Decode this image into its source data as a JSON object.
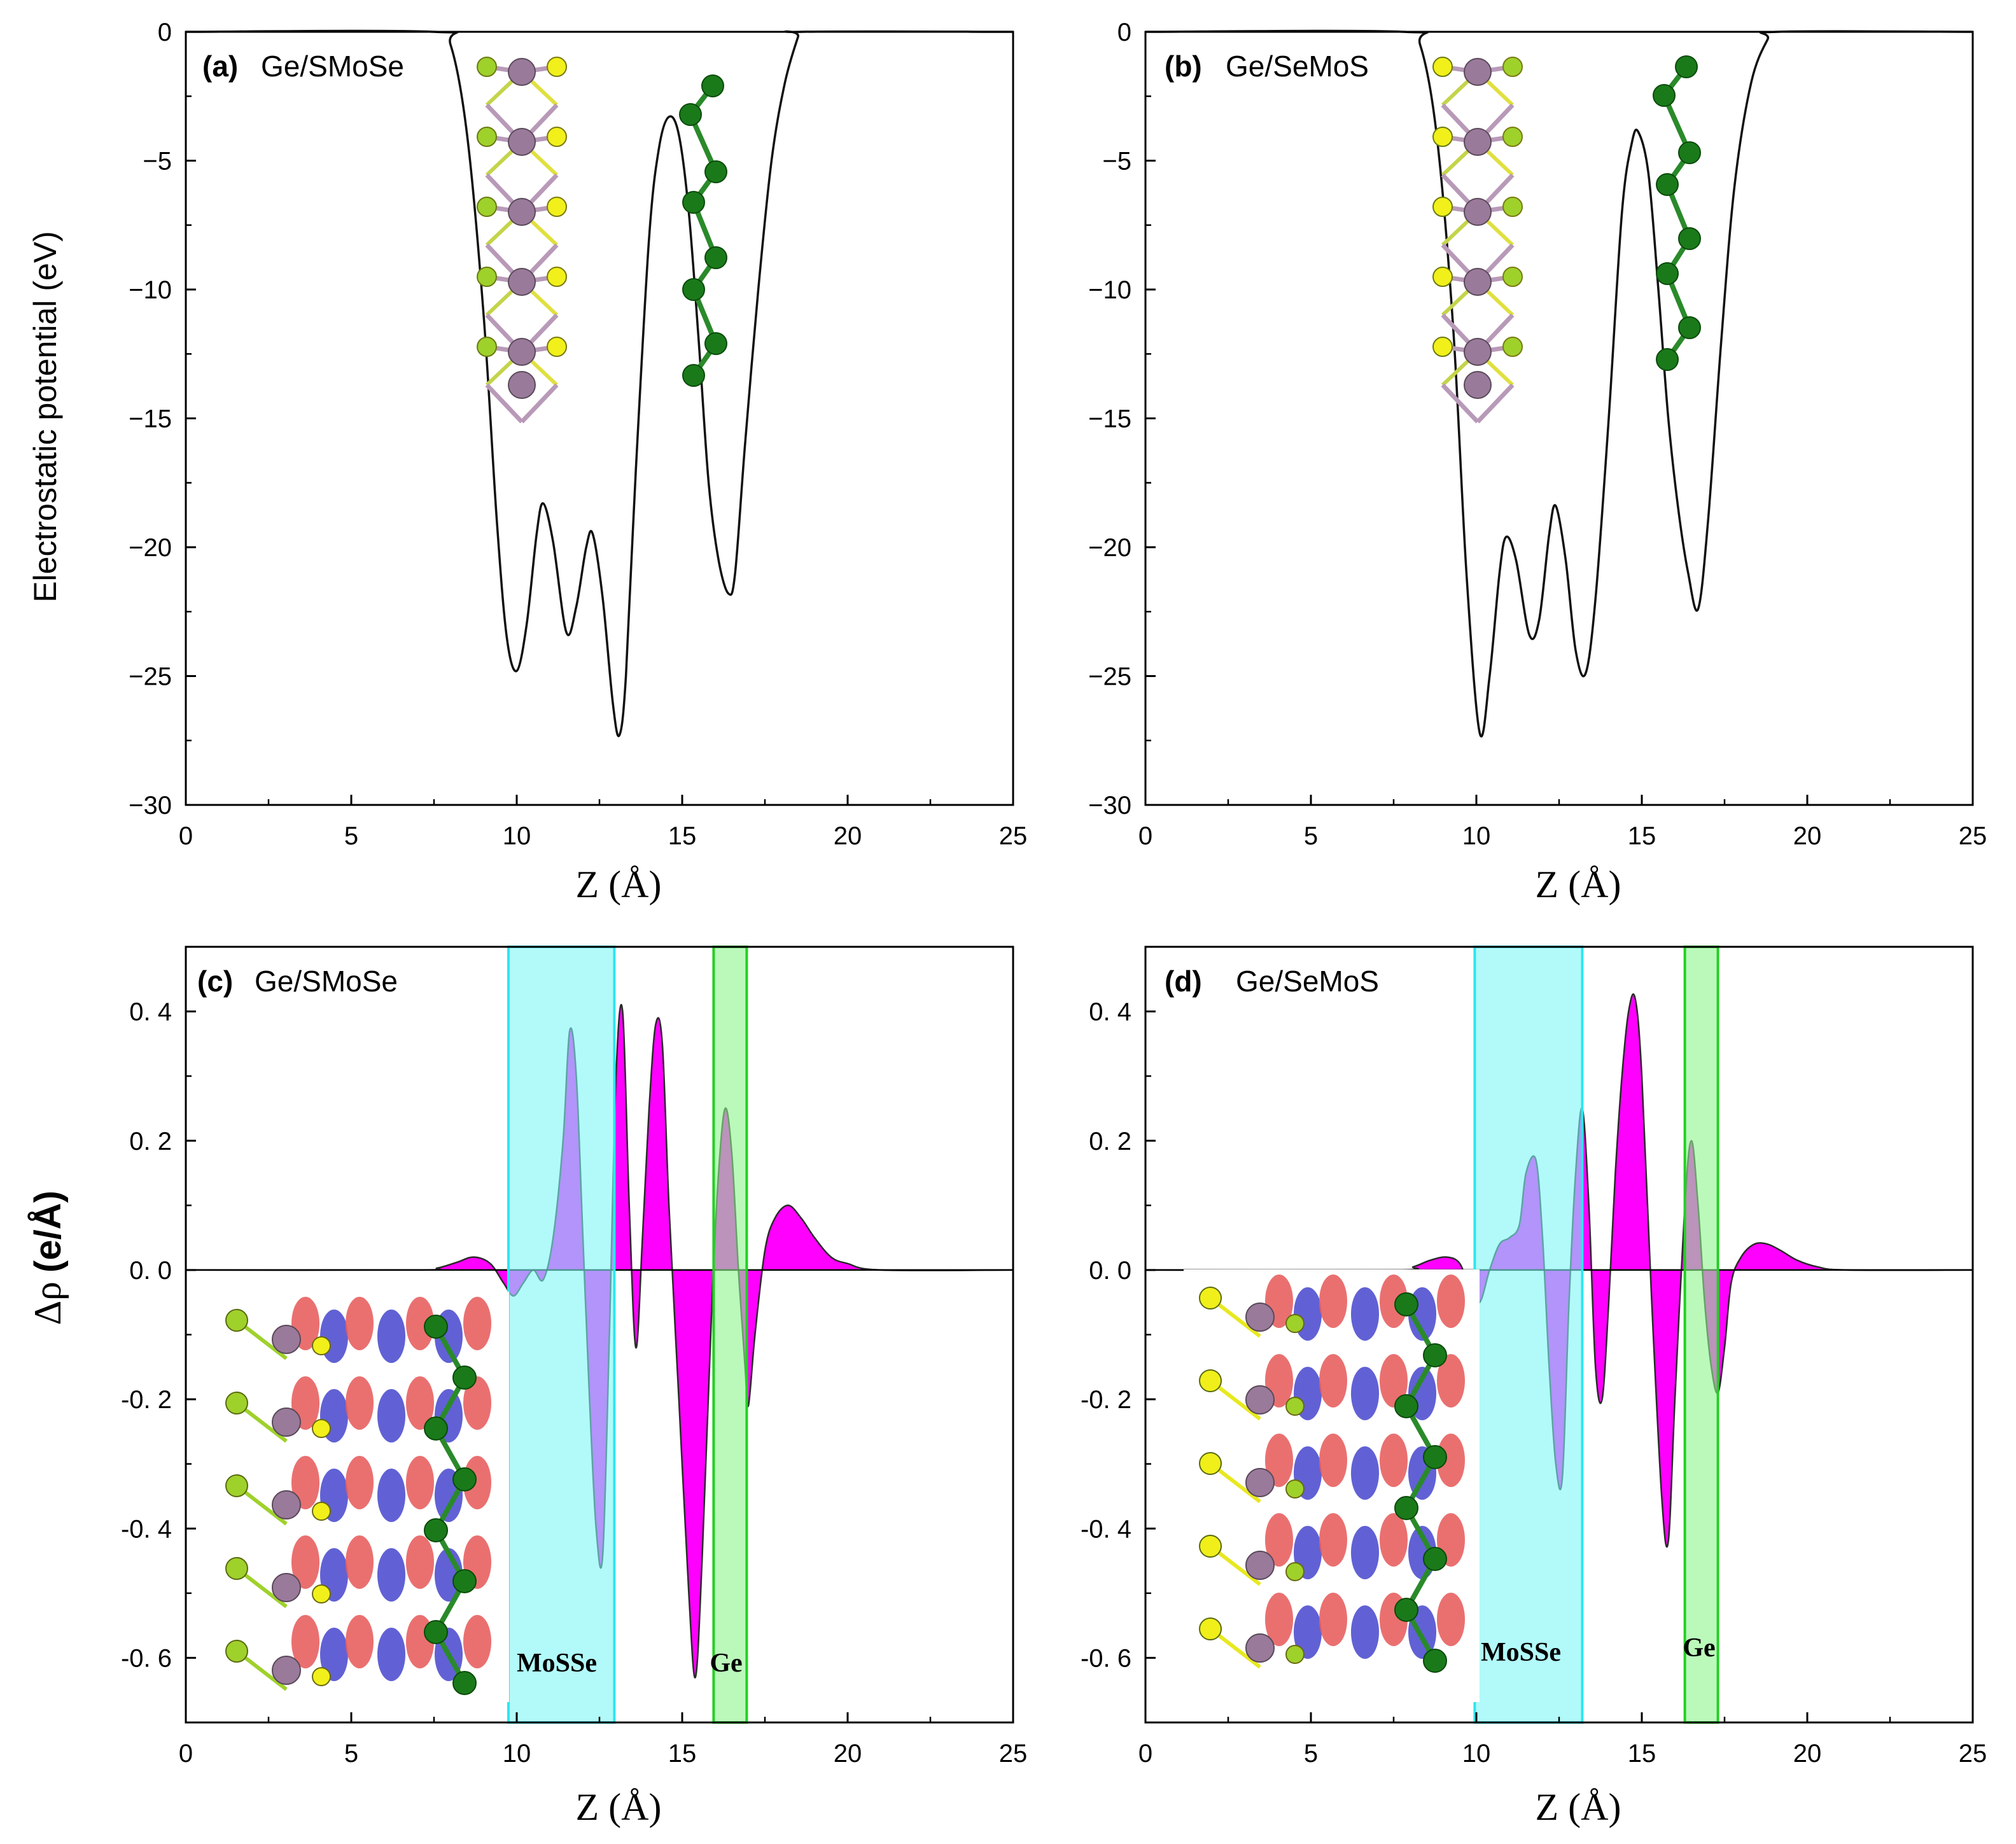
{
  "chart_data": [
    {
      "type": "line",
      "panel_letter": "(a)",
      "panel_name": "Ge/SMoSe",
      "xlabel": "Z (Å)",
      "ylabel": "Electrostatic potential (eV)",
      "xlim": [
        0,
        25
      ],
      "ylim": [
        -30,
        0
      ],
      "xticks": [
        "0",
        "5",
        "10",
        "15",
        "20",
        "25"
      ],
      "yticks": [
        "0",
        "−5",
        "−10",
        "−15",
        "−20",
        "−25",
        "−30"
      ],
      "inset": "atomic-structure-ge-smose",
      "series": [
        {
          "name": "potential",
          "x": [
            0,
            7.5,
            8.0,
            8.5,
            9.0,
            9.4,
            9.7,
            10.0,
            10.3,
            10.6,
            10.8,
            11.1,
            11.5,
            11.8,
            12.1,
            12.3,
            12.6,
            12.9,
            13.1,
            13.3,
            13.6,
            14.0,
            14.3,
            14.6,
            14.9,
            15.2,
            15.5,
            15.8,
            16.1,
            16.4,
            16.6,
            16.9,
            17.3,
            17.7,
            18.1,
            18.5,
            18.6,
            25
          ],
          "y": [
            0,
            0,
            -0.5,
            -4.0,
            -11.0,
            -19.0,
            -23.5,
            -24.8,
            -23.0,
            -19.5,
            -18.3,
            -19.8,
            -23.3,
            -22.3,
            -20.0,
            -19.5,
            -22.0,
            -26.0,
            -27.3,
            -25.0,
            -17.0,
            -8.0,
            -4.5,
            -3.3,
            -4.0,
            -7.0,
            -12.0,
            -17.5,
            -20.5,
            -21.8,
            -21.0,
            -16.0,
            -10.0,
            -5.0,
            -2.0,
            -0.2,
            0,
            0
          ]
        }
      ]
    },
    {
      "type": "line",
      "panel_letter": "(b)",
      "panel_name": "Ge/SeMoS",
      "xlabel": "Z (Å)",
      "ylabel": "",
      "xlim": [
        0,
        25
      ],
      "ylim": [
        -30,
        0
      ],
      "xticks": [
        "0",
        "5",
        "10",
        "15",
        "20",
        "25"
      ],
      "yticks": [
        "0",
        "−5",
        "−10",
        "−15",
        "−20",
        "−25",
        "−30"
      ],
      "inset": "atomic-structure-ge-semos",
      "series": [
        {
          "name": "potential",
          "x": [
            0,
            7.8,
            8.3,
            8.8,
            9.3,
            9.7,
            10.1,
            10.4,
            10.7,
            10.9,
            11.2,
            11.6,
            11.9,
            12.2,
            12.4,
            12.7,
            13.0,
            13.3,
            13.6,
            14.0,
            14.4,
            14.7,
            14.9,
            15.2,
            15.5,
            15.8,
            16.1,
            16.4,
            16.7,
            17.0,
            17.4,
            17.8,
            18.3,
            18.8,
            19.1,
            25
          ],
          "y": [
            0,
            0,
            -0.5,
            -4.0,
            -11.5,
            -21.0,
            -27.2,
            -25.0,
            -21.0,
            -19.6,
            -20.5,
            -23.4,
            -22.8,
            -19.5,
            -18.4,
            -20.5,
            -24.0,
            -24.9,
            -22.0,
            -15.0,
            -7.0,
            -4.3,
            -3.9,
            -5.5,
            -10.0,
            -15.0,
            -18.5,
            -21.0,
            -22.4,
            -19.0,
            -12.0,
            -6.0,
            -2.0,
            -0.3,
            0,
            0
          ]
        }
      ]
    },
    {
      "type": "area",
      "panel_letter": "(c)",
      "panel_name": "Ge/SMoSe",
      "xlabel": "Z (Å)",
      "ylabel_symbol": "Δρ",
      "ylabel_unit": "(e/Å)",
      "xlim": [
        0,
        25
      ],
      "ylim": [
        -0.7,
        0.5
      ],
      "xticks": [
        "0",
        "5",
        "10",
        "15",
        "20",
        "25"
      ],
      "yticks": [
        "0. 4",
        "0. 2",
        "0. 0",
        "-0. 2",
        "-0. 4",
        "-0. 6"
      ],
      "regions": [
        {
          "label": "MoSSe",
          "x0": 9.75,
          "x1": 12.95,
          "color": "#7ff7f7"
        },
        {
          "label": "Ge",
          "x0": 15.95,
          "x1": 16.95,
          "color": "#8ef58e"
        }
      ],
      "inset": "charge-density-difference-ge-smose",
      "series": [
        {
          "name": "delta_rho",
          "x": [
            0,
            7.0,
            7.6,
            8.2,
            8.7,
            9.2,
            9.6,
            9.9,
            10.2,
            10.5,
            10.8,
            11.1,
            11.4,
            11.6,
            11.8,
            12.0,
            12.2,
            12.4,
            12.6,
            12.8,
            13.0,
            13.2,
            13.4,
            13.6,
            13.8,
            14.0,
            14.2,
            14.4,
            14.6,
            14.9,
            15.2,
            15.4,
            15.6,
            15.9,
            16.1,
            16.3,
            16.5,
            16.7,
            16.9,
            17.0,
            17.2,
            17.5,
            17.8,
            18.2,
            18.6,
            19.0,
            19.5,
            20.0,
            21.0,
            25
          ],
          "y": [
            0,
            0,
            0.003,
            0.012,
            0.02,
            0.01,
            -0.02,
            -0.04,
            -0.02,
            0.0,
            -0.015,
            0.05,
            0.2,
            0.37,
            0.3,
            0.05,
            -0.2,
            -0.4,
            -0.44,
            -0.1,
            0.3,
            0.4,
            0.1,
            -0.12,
            0.05,
            0.25,
            0.38,
            0.35,
            0.1,
            -0.2,
            -0.5,
            -0.63,
            -0.45,
            -0.05,
            0.15,
            0.25,
            0.18,
            0.0,
            -0.15,
            -0.21,
            -0.1,
            0.03,
            0.08,
            0.1,
            0.08,
            0.05,
            0.02,
            0.01,
            0.0,
            0
          ]
        }
      ]
    },
    {
      "type": "area",
      "panel_letter": "(d)",
      "panel_name": "Ge/SeMoS",
      "xlabel": "Z (Å)",
      "xlim": [
        0,
        25
      ],
      "ylim": [
        -0.7,
        0.5
      ],
      "xticks": [
        "0",
        "5",
        "10",
        "15",
        "20",
        "25"
      ],
      "yticks": [
        "0. 4",
        "0. 2",
        "0. 0",
        "-0. 2",
        "-0. 4",
        "-0. 6"
      ],
      "regions": [
        {
          "label": "MoSSe",
          "x0": 9.95,
          "x1": 13.2,
          "color": "#7ff7f7"
        },
        {
          "label": "Ge",
          "x0": 16.3,
          "x1": 17.3,
          "color": "#8ef58e"
        }
      ],
      "inset": "charge-density-difference-ge-semos",
      "series": [
        {
          "name": "delta_rho",
          "x": [
            0,
            7.5,
            8.1,
            8.6,
            9.1,
            9.5,
            9.8,
            10.1,
            10.4,
            10.7,
            11.0,
            11.3,
            11.5,
            11.8,
            12.0,
            12.2,
            12.4,
            12.6,
            12.8,
            13.0,
            13.2,
            13.4,
            13.6,
            13.8,
            14.0,
            14.2,
            14.4,
            14.6,
            14.8,
            15.0,
            15.3,
            15.6,
            15.8,
            16.0,
            16.3,
            16.5,
            16.7,
            16.9,
            17.1,
            17.3,
            17.5,
            17.7,
            18.0,
            18.4,
            18.8,
            19.2,
            19.7,
            20.3,
            21.2,
            25
          ],
          "y": [
            0,
            0,
            0.005,
            0.015,
            0.02,
            0.01,
            -0.03,
            -0.05,
            0.0,
            0.04,
            0.05,
            0.07,
            0.15,
            0.17,
            0.05,
            -0.15,
            -0.3,
            -0.32,
            -0.05,
            0.15,
            0.25,
            0.1,
            -0.15,
            -0.2,
            -0.05,
            0.15,
            0.3,
            0.4,
            0.42,
            0.3,
            -0.05,
            -0.35,
            -0.42,
            -0.2,
            0.1,
            0.2,
            0.1,
            -0.05,
            -0.15,
            -0.19,
            -0.12,
            -0.02,
            0.02,
            0.04,
            0.04,
            0.03,
            0.015,
            0.005,
            0.0,
            0
          ]
        }
      ]
    }
  ]
}
